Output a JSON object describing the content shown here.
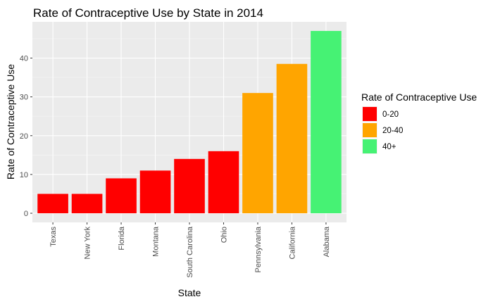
{
  "chart_data": {
    "type": "bar",
    "title": "Rate of Contraceptive Use by State in 2014",
    "xlabel": "State",
    "ylabel": "Rate of Contraceptive Use",
    "categories": [
      "Texas",
      "New York",
      "Florida",
      "Montana",
      "South Carolina",
      "Ohio",
      "Pennsylvania",
      "California",
      "Alabama"
    ],
    "values": [
      5,
      5,
      9,
      11,
      14,
      16,
      31,
      38.5,
      47
    ],
    "groups": [
      "0-20",
      "0-20",
      "0-20",
      "0-20",
      "0-20",
      "0-20",
      "20-40",
      "20-40",
      "40+"
    ],
    "ylim": [
      -2.35,
      49.35
    ],
    "yticks": [
      0,
      10,
      20,
      30,
      40
    ],
    "grid": true,
    "legend": {
      "title": "Rate of Contraceptive Use",
      "position": "right",
      "entries": [
        {
          "label": "0-20",
          "color": "#ff0000"
        },
        {
          "label": "20-40",
          "color": "#ffa500"
        },
        {
          "label": "40+",
          "color": "#46f274"
        }
      ]
    }
  },
  "colors": {
    "panel_background": "#ebebeb",
    "grid_major": "#ffffff",
    "grid_minor": "#f5f5f5"
  }
}
